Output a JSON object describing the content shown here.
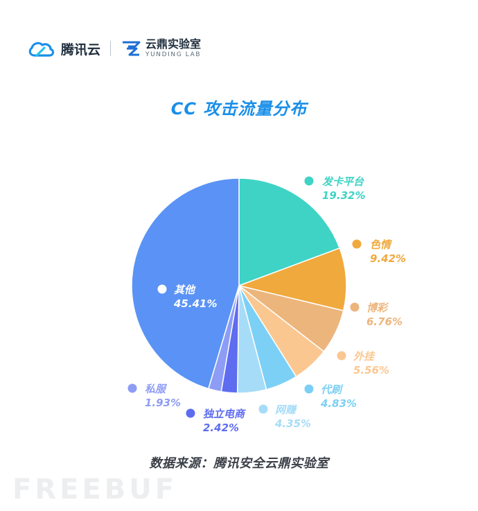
{
  "header": {
    "brand_name": "腾讯云",
    "lab_name_cn": "云鼎实验室",
    "lab_name_en": "YUNDING LAB"
  },
  "chart_data": {
    "type": "pie",
    "title": "CC 攻击流量分布",
    "slices": [
      {
        "label": "发卡平台",
        "value": 19.32,
        "value_text": "19.32%",
        "color": "#3ed3c5"
      },
      {
        "label": "色情",
        "value": 9.42,
        "value_text": "9.42%",
        "color": "#f0a93c"
      },
      {
        "label": "博彩",
        "value": 6.76,
        "value_text": "6.76%",
        "color": "#ecb57c"
      },
      {
        "label": "外挂",
        "value": 5.56,
        "value_text": "5.56%",
        "color": "#fbc791"
      },
      {
        "label": "代刷",
        "value": 4.83,
        "value_text": "4.83%",
        "color": "#7cd0f5"
      },
      {
        "label": "网赚",
        "value": 4.35,
        "value_text": "4.35%",
        "color": "#a6dcf8"
      },
      {
        "label": "独立电商",
        "value": 2.42,
        "value_text": "2.42%",
        "color": "#5e6cf0"
      },
      {
        "label": "私服",
        "value": 1.93,
        "value_text": "1.93%",
        "color": "#8d9cf5"
      },
      {
        "label": "其他",
        "value": 45.41,
        "value_text": "45.41%",
        "color": "#5a93f5"
      }
    ],
    "start_angle_deg": 0,
    "direction": "clockwise"
  },
  "footer": {
    "source": "数据来源：腾讯安全云鼎实验室"
  },
  "watermark": {
    "text": "FREEBUF"
  }
}
